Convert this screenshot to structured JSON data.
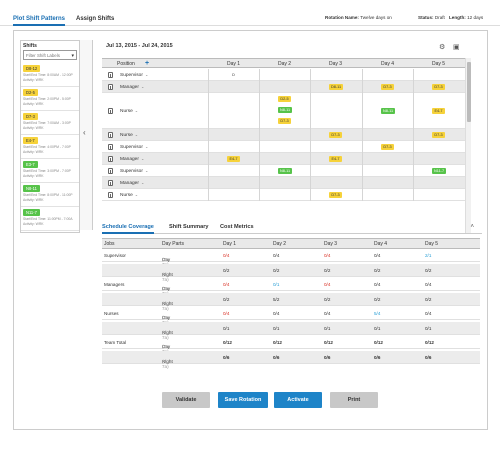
{
  "header": {
    "tabs": [
      {
        "label": "Plot Shift Patterns"
      },
      {
        "label": "Assign Shifts"
      }
    ],
    "rotation_label": "Rotation Name:",
    "rotation_value": "Twelve days on",
    "status_label": "Status:",
    "status_value": "Draft",
    "length_label": "Length:",
    "length_value": "12 days"
  },
  "sidebar": {
    "title": "Shifts",
    "filter_placeholder": "Filter Shift Labels",
    "shifts": [
      {
        "code": "D8-12",
        "color": "#f6d23a",
        "line1": "Start/End Time: 8:00AM - 12:00P",
        "line2": "Activity: WRK"
      },
      {
        "code": "D2-5",
        "color": "#f6d23a",
        "line1": "Start/End Time: 2:00PM - 5:00P",
        "line2": "Activity: WRK"
      },
      {
        "code": "D7-3",
        "color": "#f6d23a",
        "line1": "Start/End Time: 7:00AM - 3:00P",
        "line2": "Activity: WRK"
      },
      {
        "code": "E4-7",
        "color": "#f6d23a",
        "line1": "Start/End Time: 4:00PM - 7:00P",
        "line2": "Activity: WRK"
      },
      {
        "code": "E3-7",
        "color": "#57c34a",
        "line1": "Start/End Time: 3:00PM - 7:00P",
        "line2": "Activity: WRK"
      },
      {
        "code": "N8-11",
        "color": "#57c34a",
        "line1": "Start/End Time: 8:00PM - 11:00P",
        "line2": "Activity: WRK"
      },
      {
        "code": "N11-7",
        "color": "#57c34a",
        "line1": "Start/End Time: 11:00PM - 7:00A",
        "line2": "Activity: WRK"
      }
    ]
  },
  "grid": {
    "date_range": "Jul 13, 2015 - Jul 24, 2015",
    "add_icon": "plus-icon",
    "columns": [
      "Position",
      "Day 1",
      "Day 2",
      "Day 3",
      "Day 4",
      "Day 5"
    ],
    "rows": [
      {
        "label": "Supervisor",
        "shifts": [
          [
            "D7-3",
            "y"
          ],
          [],
          [],
          [],
          []
        ]
      },
      {
        "label": "Manager",
        "shifts": [
          [],
          [],
          [
            [
              "D8-11",
              "y"
            ]
          ],
          [
            [
              "D7-3",
              "y"
            ]
          ],
          [
            [
              "D7-3",
              "y"
            ]
          ]
        ]
      },
      {
        "label": "Nurse",
        "shifts": [
          [],
          [
            [
              "D2-5",
              "y"
            ],
            [
              "N8-11",
              "g"
            ],
            [
              "D7-3",
              "y"
            ]
          ],
          [],
          [
            [
              "N8-11",
              "g"
            ]
          ],
          [
            [
              "E4-7",
              "y"
            ]
          ]
        ]
      },
      {
        "label": "Nurse",
        "shifts": [
          [],
          [],
          [
            [
              "D7-3",
              "y"
            ]
          ],
          [],
          [
            [
              "D7-3",
              "y"
            ]
          ]
        ]
      },
      {
        "label": "Supervisor",
        "shifts": [
          [],
          [],
          [],
          [
            [
              "D7-3",
              "y"
            ]
          ],
          []
        ]
      },
      {
        "label": "Manager",
        "shifts": [
          [
            [
              "E4-7",
              "y"
            ]
          ],
          [],
          [
            [
              "E4-7",
              "y"
            ]
          ],
          [],
          []
        ]
      },
      {
        "label": "Supervisor",
        "shifts": [
          [],
          [
            [
              "N8-11",
              "g"
            ]
          ],
          [],
          [],
          [
            [
              "N11-7",
              "g"
            ]
          ]
        ]
      },
      {
        "label": "Manager",
        "shifts": [
          [],
          [],
          [],
          [],
          []
        ]
      },
      {
        "label": "Nurse",
        "shifts": [
          [],
          [],
          [
            [
              "D7-3",
              "y"
            ]
          ],
          [],
          []
        ]
      }
    ]
  },
  "bottom_tabs": [
    {
      "label": "Schedule Coverage"
    },
    {
      "label": "Shift Summary"
    },
    {
      "label": "Cost Metrics"
    }
  ],
  "coverage": {
    "columns": [
      "Jobs",
      "Day Parts",
      "Day 1",
      "Day 2",
      "Day 3",
      "Day 4",
      "Day 5"
    ],
    "rows": [
      {
        "job": "Supervisor",
        "part": "Day",
        "range": "(7a-7p)",
        "vals": [
          "0/4",
          "0/4",
          "0/4",
          "0/4",
          "2/1"
        ],
        "colors": [
          "red",
          "",
          "red",
          "",
          "blue"
        ]
      },
      {
        "job": "",
        "part": "Night",
        "range": "(7p-7a)",
        "vals": [
          "0/2",
          "0/2",
          "0/2",
          "0/2",
          "0/2"
        ],
        "colors": [
          "",
          "",
          "",
          "",
          ""
        ]
      },
      {
        "job": "Managers",
        "part": "Day",
        "range": "(7a-7p)",
        "vals": [
          "0/4",
          "0/1",
          "0/4",
          "0/4",
          "0/4"
        ],
        "colors": [
          "red",
          "blue",
          "red",
          "",
          ""
        ]
      },
      {
        "job": "",
        "part": "Night",
        "range": "(7p-7a)",
        "vals": [
          "0/2",
          "5/2",
          "0/2",
          "0/2",
          "0/2"
        ],
        "colors": [
          "",
          "",
          "",
          "",
          ""
        ]
      },
      {
        "job": "Nurses",
        "part": "Day",
        "range": "(7a-7p)",
        "vals": [
          "0/4",
          "0/4",
          "0/4",
          "5/4",
          "0/4"
        ],
        "colors": [
          "red",
          "",
          "",
          "blue",
          ""
        ]
      },
      {
        "job": "",
        "part": "Night",
        "range": "(7p-7a)",
        "vals": [
          "0/1",
          "0/1",
          "0/1",
          "0/1",
          "0/1"
        ],
        "colors": [
          "",
          "",
          "",
          "",
          ""
        ]
      },
      {
        "job": "Team Total",
        "part": "Day",
        "range": "(7a-7p)",
        "vals": [
          "0/12",
          "0/12",
          "0/12",
          "0/12",
          "0/12"
        ],
        "colors": [
          "",
          "",
          "",
          "",
          ""
        ]
      },
      {
        "job": "",
        "part": "Night",
        "range": "(7p-7a)",
        "vals": [
          "0/6",
          "0/6",
          "0/6",
          "0/6",
          "0/6"
        ],
        "colors": [
          "",
          "",
          "",
          "",
          ""
        ]
      }
    ]
  },
  "actions": {
    "validate": "Validate",
    "save": "Save Rotation",
    "activate": "Activate",
    "print": "Print"
  }
}
